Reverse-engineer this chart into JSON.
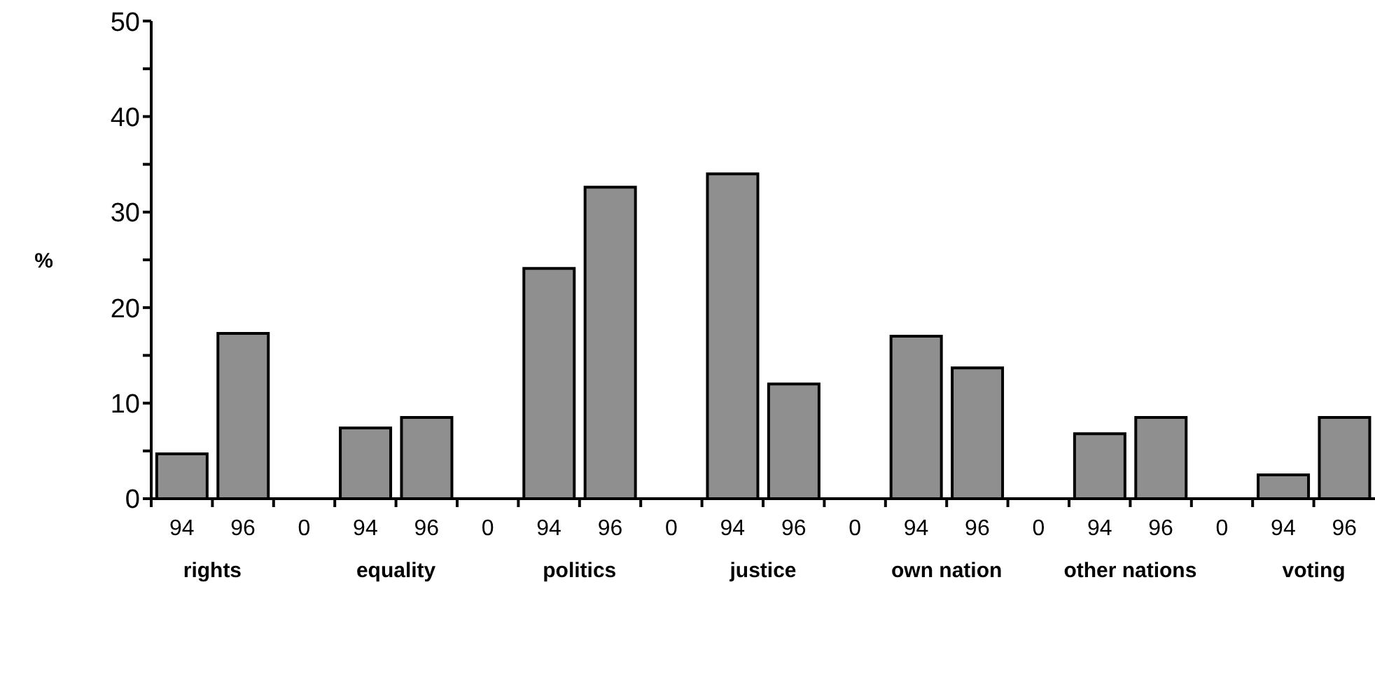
{
  "chart_data": {
    "type": "bar",
    "ylabel": "%",
    "categories": [
      "94",
      "96",
      "0",
      "94",
      "96",
      "0",
      "94",
      "96",
      "0",
      "94",
      "96",
      "0",
      "94",
      "96",
      "0",
      "94",
      "96",
      "0",
      "94",
      "96"
    ],
    "values": [
      4.7,
      17.3,
      0,
      7.4,
      8.5,
      0,
      24.1,
      32.6,
      0,
      34.0,
      12.0,
      0,
      17.0,
      13.7,
      0,
      6.8,
      8.5,
      0,
      2.5,
      8.5
    ],
    "color": "#8f8f8f",
    "ylim": [
      0,
      50
    ],
    "yticks": [
      0,
      {
        "value": 5,
        "label": null
      },
      10,
      {
        "value": 15,
        "label": null
      },
      20,
      {
        "value": 25,
        "label": null
      },
      30,
      {
        "value": 35,
        "label": null
      },
      40,
      {
        "value": 45,
        "label": null
      },
      50
    ],
    "grid": false,
    "annotations": [
      "rights",
      "equality",
      "politics",
      "justice",
      "own nation",
      "other nations",
      "voting"
    ]
  }
}
